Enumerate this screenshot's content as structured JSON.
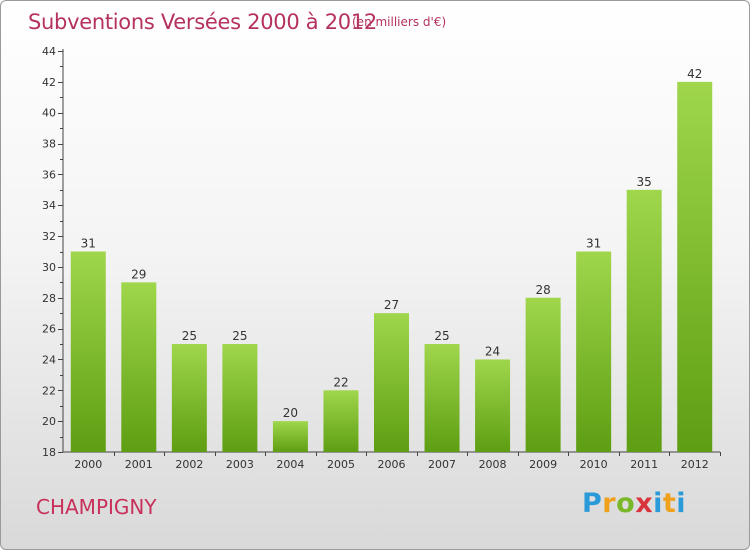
{
  "header": {
    "title": "Subventions Versées 2000 à 2012",
    "subtitle": "(en milliers d'€)"
  },
  "location": "CHAMPIGNY",
  "logo": {
    "text": "Proxiti",
    "letters": [
      "P",
      "r",
      "o",
      "x",
      "i",
      "t",
      "i"
    ]
  },
  "colors": {
    "title": "#b5315e",
    "bar_top": "#9fd64c",
    "bar_bottom": "#5e9e12",
    "axis": "#444444"
  },
  "chart_data": {
    "type": "bar",
    "title": "Subventions Versées 2000 à 2012",
    "subtitle": "(en milliers d'€)",
    "xlabel": "",
    "ylabel": "",
    "categories": [
      "2000",
      "2001",
      "2002",
      "2003",
      "2004",
      "2005",
      "2006",
      "2007",
      "2008",
      "2009",
      "2010",
      "2011",
      "2012"
    ],
    "values": [
      31,
      29,
      25,
      25,
      20,
      22,
      27,
      25,
      24,
      28,
      31,
      35,
      42
    ],
    "ylim": [
      18,
      44
    ],
    "yticks": [
      18,
      20,
      22,
      24,
      26,
      28,
      30,
      32,
      34,
      36,
      38,
      40,
      42,
      44
    ],
    "grid": false,
    "legend": "none"
  }
}
